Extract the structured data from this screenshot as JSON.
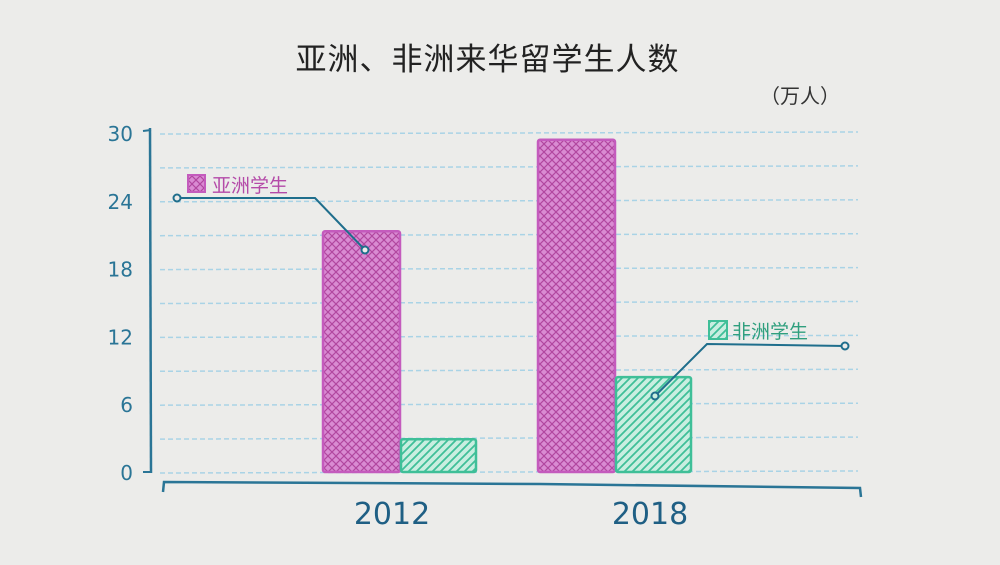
{
  "chart_data": {
    "type": "bar",
    "title": "亚洲、非洲来华留学生人数",
    "unit": "（万人）",
    "categories": [
      "2012",
      "2018"
    ],
    "series": [
      {
        "name": "亚洲学生",
        "values": [
          21.3,
          29.4
        ],
        "color": "#c45bbd"
      },
      {
        "name": "非洲学生",
        "values": [
          2.9,
          8.4
        ],
        "color": "#3fbf98"
      }
    ],
    "yticks": [
      "0",
      "6",
      "12",
      "18",
      "24",
      "30"
    ],
    "ylim": [
      0,
      30
    ],
    "grid": true,
    "axis_color": "#2a7596",
    "legend_placement": "callouts"
  }
}
